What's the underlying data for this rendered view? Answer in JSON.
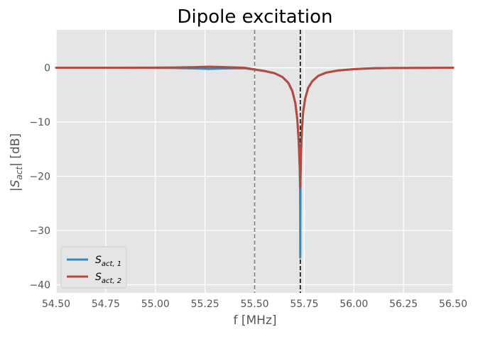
{
  "chart_data": {
    "type": "line",
    "title": "Dipole excitation",
    "xlabel": "f [MHz]",
    "ylabel": "|S_act| [dB]",
    "xlim": [
      54.5,
      56.5
    ],
    "ylim": [
      -41.5,
      7
    ],
    "xticks": [
      54.5,
      54.75,
      55.0,
      55.25,
      55.5,
      55.75,
      56.0,
      56.25,
      56.5
    ],
    "xtick_labels": [
      "54.50",
      "54.75",
      "55.00",
      "55.25",
      "55.50",
      "55.75",
      "56.00",
      "56.25",
      "56.50"
    ],
    "yticks": [
      0,
      -10,
      -20,
      -30,
      -40
    ],
    "ytick_labels": [
      "0",
      "−10",
      "−20",
      "−30",
      "−40"
    ],
    "grid": true,
    "legend_position": "lower-left",
    "background": "#e5e5e5",
    "vlines": [
      {
        "x": 55.5,
        "color": "#808080",
        "style": "dashed"
      },
      {
        "x": 55.73,
        "color": "#000000",
        "style": "dashed"
      }
    ],
    "series": [
      {
        "name": "S_act,1",
        "legend_main": "S",
        "legend_sub": "act, 1",
        "color": "#348abd",
        "x": [
          54.5,
          54.8,
          55.0,
          55.1,
          55.2,
          55.27,
          55.35,
          55.45,
          55.55,
          55.6,
          55.64,
          55.67,
          55.69,
          55.705,
          55.715,
          55.722,
          55.727,
          55.729,
          55.7295,
          55.73,
          55.7305,
          55.731,
          55.733,
          55.738,
          55.745,
          55.755,
          55.77,
          55.79,
          55.82,
          55.86,
          55.92,
          56.0,
          56.1,
          56.2,
          56.35,
          56.5
        ],
        "y": [
          0,
          0,
          -0.02,
          -0.05,
          -0.12,
          -0.2,
          -0.12,
          -0.1,
          -0.6,
          -1.0,
          -1.7,
          -2.8,
          -4.3,
          -6.5,
          -9.5,
          -13.5,
          -18.5,
          -22.5,
          -27,
          -35,
          -27,
          -21.5,
          -16.5,
          -11.5,
          -8.0,
          -5.6,
          -3.7,
          -2.5,
          -1.5,
          -0.9,
          -0.5,
          -0.25,
          -0.1,
          -0.05,
          -0.02,
          0
        ]
      },
      {
        "name": "S_act,2",
        "legend_main": "S",
        "legend_sub": "act, 2",
        "color": "#b74a3c",
        "x": [
          54.5,
          54.8,
          55.0,
          55.1,
          55.2,
          55.27,
          55.35,
          55.45,
          55.55,
          55.6,
          55.64,
          55.67,
          55.69,
          55.705,
          55.715,
          55.722,
          55.727,
          55.729,
          55.7295,
          55.73,
          55.7305,
          55.731,
          55.733,
          55.738,
          55.745,
          55.755,
          55.77,
          55.79,
          55.82,
          55.86,
          55.92,
          56.0,
          56.1,
          56.2,
          56.35,
          56.5
        ],
        "y": [
          0,
          0,
          0.02,
          0.05,
          0.12,
          0.2,
          0.12,
          0.0,
          -0.6,
          -1.0,
          -1.7,
          -2.8,
          -4.3,
          -6.5,
          -9.5,
          -13.5,
          -18.0,
          -20.5,
          -21.5,
          -22,
          -21.5,
          -20.0,
          -16.0,
          -11.5,
          -8.0,
          -5.6,
          -3.7,
          -2.5,
          -1.5,
          -0.9,
          -0.5,
          -0.25,
          -0.1,
          -0.05,
          -0.02,
          0
        ]
      }
    ]
  }
}
